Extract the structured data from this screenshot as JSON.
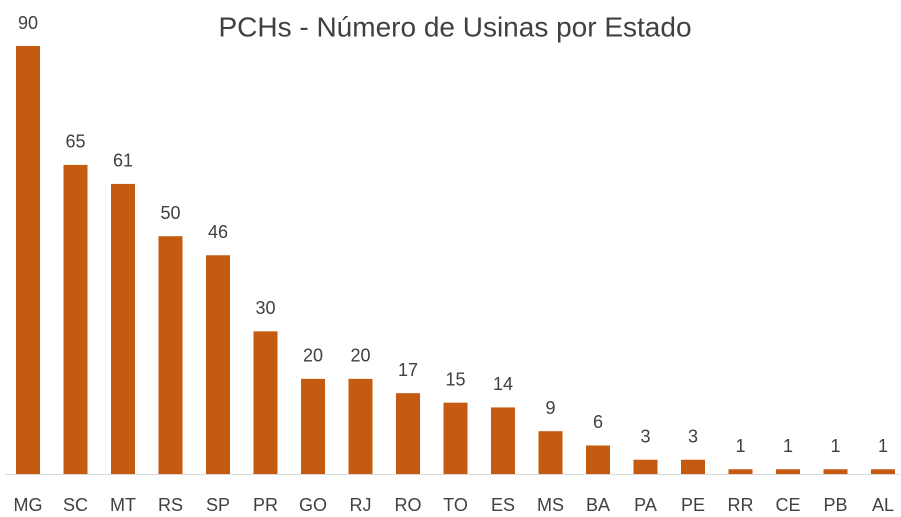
{
  "chart_data": {
    "type": "bar",
    "title": "PCHs - Número de Usinas por Estado",
    "categories": [
      "MG",
      "SC",
      "MT",
      "RS",
      "SP",
      "PR",
      "GO",
      "RJ",
      "RO",
      "TO",
      "ES",
      "MS",
      "BA",
      "PA",
      "PE",
      "RR",
      "CE",
      "PB",
      "AL"
    ],
    "values": [
      90,
      65,
      61,
      50,
      46,
      30,
      20,
      20,
      17,
      15,
      14,
      9,
      6,
      3,
      3,
      1,
      1,
      1,
      1
    ],
    "color": "#c55a11"
  }
}
